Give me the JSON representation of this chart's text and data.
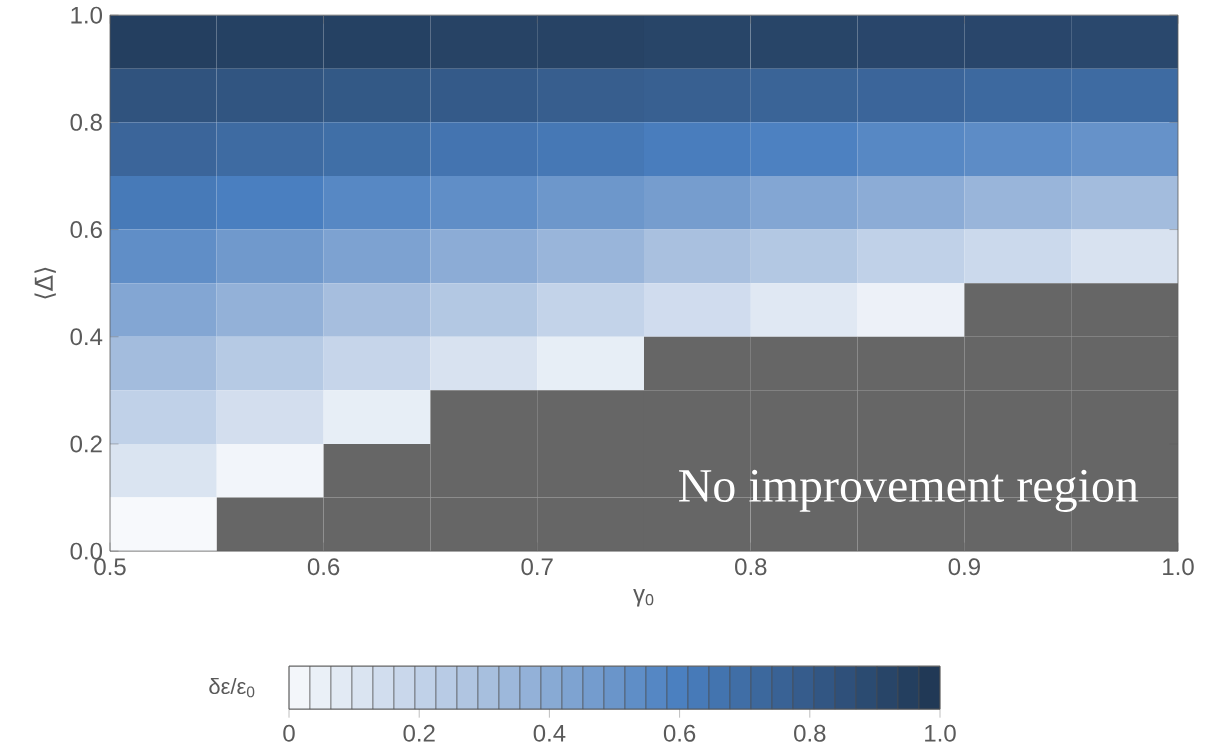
{
  "chart_data": {
    "type": "heatmap",
    "xlabel": "γ$_{0}$",
    "ylabel": "⟨Δ̄⟩",
    "clabel": "δε/ε$_{0}$",
    "annotations": [
      "No improvement region"
    ],
    "xlim": [
      0.5,
      1.0
    ],
    "xticks": [
      0.5,
      0.6,
      0.7,
      0.8,
      0.9,
      {
        "value": 1.0,
        "label": "1.0"
      }
    ],
    "ylim": [
      0.0,
      1.0
    ],
    "yticks": [
      {
        "value": 0.0,
        "label": "0.0"
      },
      0.2,
      0.4,
      0.6,
      0.8,
      {
        "value": 1.0,
        "label": "1.0"
      }
    ],
    "cells": [
      [
        0.95,
        0.94,
        0.94,
        0.93,
        0.93,
        0.92,
        0.92,
        0.91,
        0.91,
        0.9
      ],
      [
        0.84,
        0.83,
        0.81,
        0.8,
        0.78,
        0.77,
        0.75,
        0.74,
        0.72,
        0.71
      ],
      [
        0.74,
        0.71,
        0.69,
        0.66,
        0.64,
        0.61,
        0.59,
        0.56,
        0.54,
        0.51
      ],
      [
        0.63,
        0.6,
        0.56,
        0.53,
        0.49,
        0.46,
        0.42,
        0.39,
        0.35,
        0.32
      ],
      [
        0.53,
        0.48,
        0.44,
        0.39,
        0.35,
        0.3,
        0.26,
        0.21,
        0.17,
        0.12
      ],
      [
        0.42,
        0.37,
        0.31,
        0.26,
        0.2,
        0.15,
        0.09,
        0.04,
        null,
        null
      ],
      [
        0.32,
        0.25,
        0.19,
        0.12,
        0.06,
        null,
        null,
        null,
        null,
        null
      ],
      [
        0.21,
        0.14,
        0.06,
        null,
        null,
        null,
        null,
        null,
        null,
        null
      ],
      [
        0.11,
        0.02,
        null,
        null,
        null,
        null,
        null,
        null,
        null,
        null
      ],
      [
        0.0,
        null,
        null,
        null,
        null,
        null,
        null,
        null,
        null,
        null
      ]
    ],
    "clim": [
      0,
      1
    ],
    "cticks": [
      0,
      0.2,
      0.4,
      0.6,
      0.8,
      {
        "value": 1.0,
        "label": "1.0"
      }
    ]
  }
}
